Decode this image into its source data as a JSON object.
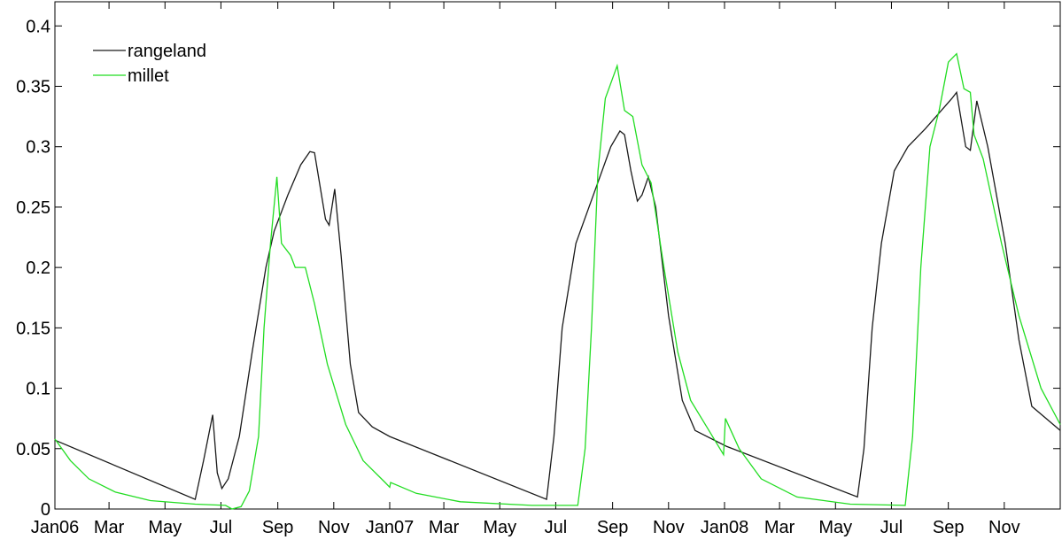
{
  "chart_data": {
    "type": "line",
    "xlim": [
      0,
      1096
    ],
    "xticks": [
      {
        "value": 0,
        "label": "Jan06"
      },
      {
        "value": 59,
        "label": "Mar"
      },
      {
        "value": 120,
        "label": "May"
      },
      {
        "value": 181,
        "label": "Jul"
      },
      {
        "value": 243,
        "label": "Sep"
      },
      {
        "value": 304,
        "label": "Nov"
      },
      {
        "value": 365,
        "label": "Jan07"
      },
      {
        "value": 424,
        "label": "Mar"
      },
      {
        "value": 485,
        "label": "May"
      },
      {
        "value": 546,
        "label": "Jul"
      },
      {
        "value": 608,
        "label": "Sep"
      },
      {
        "value": 669,
        "label": "Nov"
      },
      {
        "value": 730,
        "label": "Jan08"
      },
      {
        "value": 790,
        "label": "Mar"
      },
      {
        "value": 851,
        "label": "May"
      },
      {
        "value": 912,
        "label": "Jul"
      },
      {
        "value": 974,
        "label": "Sep"
      },
      {
        "value": 1035,
        "label": "Nov"
      }
    ],
    "ylim": [
      0,
      0.42
    ],
    "yticks": [
      0,
      0.05,
      0.1,
      0.15,
      0.2,
      0.25,
      0.3,
      0.35,
      0.4
    ],
    "legend": "upper left",
    "series": [
      {
        "name": "rangeland",
        "color": "#1a1a1a",
        "x": [
          0,
          153,
          162,
          172,
          177,
          182,
          189,
          201,
          215,
          230,
          239,
          254,
          268,
          278,
          283,
          295,
          299,
          305,
          312,
          322,
          331,
          346,
          365,
          536,
          544,
          553,
          568,
          587,
          606,
          616,
          621,
          628,
          635,
          640,
          647,
          655,
          669,
          684,
          698,
          732,
          875,
          882,
          891,
          901,
          915,
          930,
          949,
          978,
          983,
          993,
          998,
          1005,
          1017,
          1036,
          1051,
          1065,
          1096
        ],
        "values": [
          0.057,
          0.008,
          0.04,
          0.078,
          0.03,
          0.017,
          0.025,
          0.06,
          0.13,
          0.2,
          0.23,
          0.26,
          0.285,
          0.296,
          0.295,
          0.24,
          0.235,
          0.265,
          0.21,
          0.12,
          0.08,
          0.068,
          0.06,
          0.008,
          0.06,
          0.15,
          0.22,
          0.26,
          0.3,
          0.313,
          0.31,
          0.28,
          0.255,
          0.26,
          0.275,
          0.25,
          0.16,
          0.09,
          0.065,
          0.052,
          0.01,
          0.05,
          0.15,
          0.22,
          0.28,
          0.3,
          0.315,
          0.34,
          0.345,
          0.3,
          0.297,
          0.338,
          0.3,
          0.22,
          0.14,
          0.085,
          0.065
        ]
      },
      {
        "name": "millet",
        "color": "#22dd22",
        "x": [
          0,
          17,
          37,
          66,
          104,
          153,
          186,
          193,
          203,
          212,
          222,
          228,
          235,
          242,
          247,
          257,
          262,
          273,
          283,
          297,
          317,
          336,
          360,
          365,
          366,
          394,
          442,
          520,
          570,
          578,
          585,
          592,
          600,
          613,
          621,
          630,
          640,
          650,
          664,
          679,
          693,
          713,
          729,
          731,
          746,
          770,
          809,
          867,
          927,
          935,
          944,
          954,
          964,
          974,
          983,
          991,
          998,
          1002,
          1012,
          1032,
          1051,
          1075,
          1096
        ],
        "values": [
          0.058,
          0.04,
          0.025,
          0.014,
          0.007,
          0.004,
          0.003,
          0.0,
          0.002,
          0.015,
          0.06,
          0.15,
          0.22,
          0.275,
          0.22,
          0.21,
          0.2,
          0.2,
          0.17,
          0.12,
          0.07,
          0.04,
          0.022,
          0.018,
          0.022,
          0.013,
          0.006,
          0.003,
          0.003,
          0.05,
          0.15,
          0.28,
          0.34,
          0.367,
          0.33,
          0.325,
          0.285,
          0.27,
          0.2,
          0.13,
          0.09,
          0.065,
          0.045,
          0.075,
          0.05,
          0.025,
          0.01,
          0.004,
          0.003,
          0.06,
          0.2,
          0.3,
          0.33,
          0.37,
          0.377,
          0.348,
          0.345,
          0.31,
          0.29,
          0.22,
          0.16,
          0.1,
          0.07
        ]
      }
    ]
  }
}
